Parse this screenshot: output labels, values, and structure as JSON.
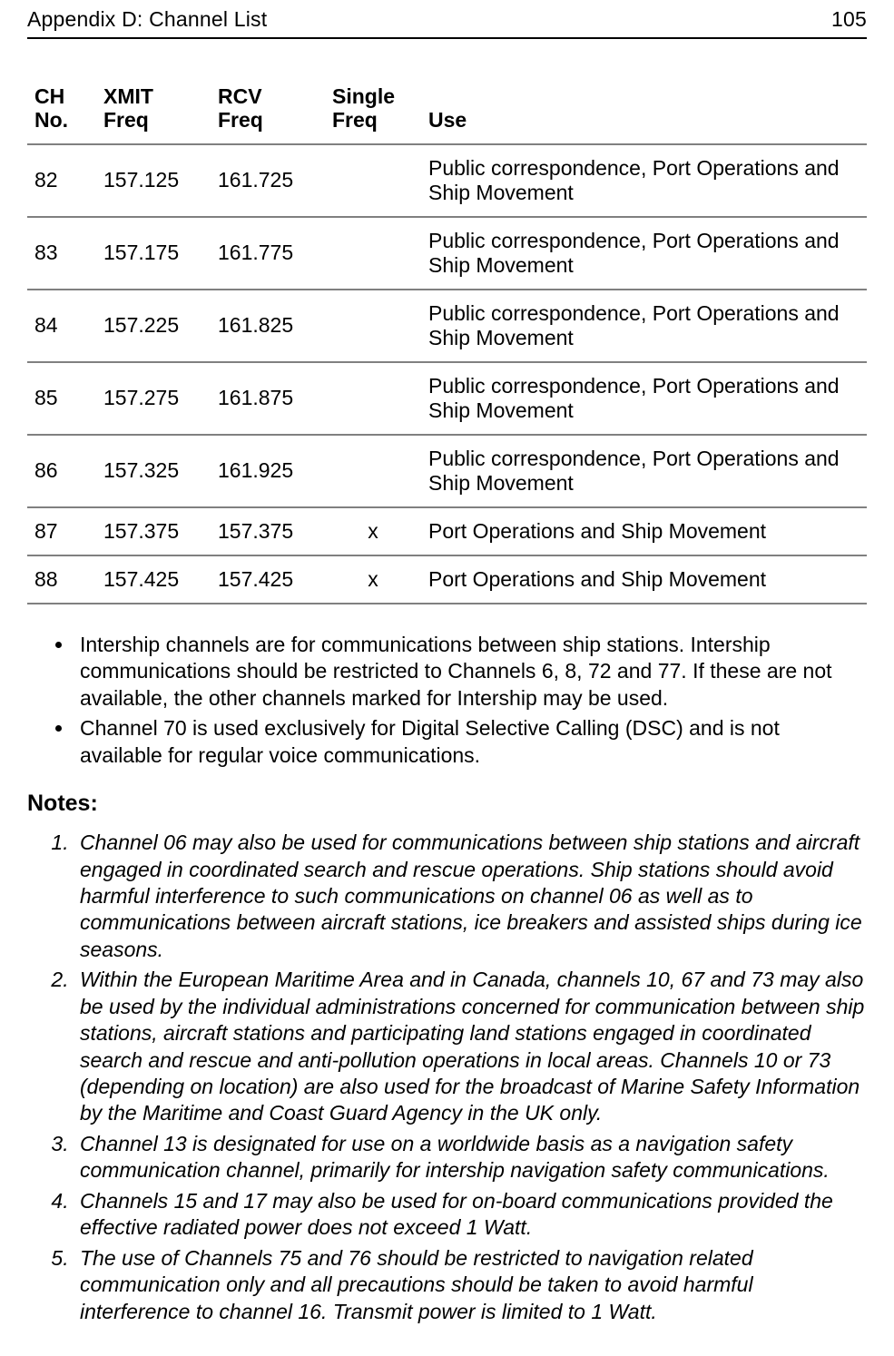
{
  "header": {
    "title": "Appendix D: Channel List",
    "page_number": "105"
  },
  "table": {
    "columns": {
      "ch": {
        "line1": "CH",
        "line2": "No."
      },
      "xmit": {
        "line1": "XMIT",
        "line2": "Freq"
      },
      "rcv": {
        "line1": "RCV",
        "line2": "Freq"
      },
      "single": {
        "line1": "Single",
        "line2": "Freq"
      },
      "use": {
        "line1": "Use",
        "line2": ""
      }
    },
    "rows": [
      {
        "ch": "82",
        "xmit": "157.125",
        "rcv": "161.725",
        "single": "",
        "use": "Public correspondence, Port Operations and Ship Movement"
      },
      {
        "ch": "83",
        "xmit": "157.175",
        "rcv": "161.775",
        "single": "",
        "use": "Public correspondence, Port Operations and Ship Movement"
      },
      {
        "ch": "84",
        "xmit": "157.225",
        "rcv": "161.825",
        "single": "",
        "use": "Public correspondence, Port Operations and Ship Movement"
      },
      {
        "ch": "85",
        "xmit": "157.275",
        "rcv": "161.875",
        "single": "",
        "use": "Public correspondence, Port Operations and Ship Movement"
      },
      {
        "ch": "86",
        "xmit": "157.325",
        "rcv": "161.925",
        "single": "",
        "use": "Public correspondence, Port Operations and Ship Movement"
      },
      {
        "ch": "87",
        "xmit": "157.375",
        "rcv": "157.375",
        "single": "x",
        "use": "Port Operations and Ship Movement"
      },
      {
        "ch": "88",
        "xmit": "157.425",
        "rcv": "157.425",
        "single": "x",
        "use": "Port Operations and Ship Movement"
      }
    ]
  },
  "bullets": [
    "Intership channels are for communications between ship stations. Intership communications should be restricted to Channels 6, 8, 72 and 77. If these are not available, the other channels marked for Intership may be used.",
    "Channel 70 is used exclusively for Digital Selective Calling (DSC) and is not available for regular voice communications."
  ],
  "notes_heading": "Notes:",
  "notes": [
    "Channel 06 may also be used for communications between ship stations and aircraft engaged in coordinated search and rescue operations. Ship stations should avoid harmful interference to such communications on channel 06 as well as to communications between aircraft stations, ice breakers and assisted ships during ice seasons.",
    "Within the European Maritime Area and in Canada, channels 10, 67 and 73 may also be used by the individual administrations concerned for communication between ship stations, aircraft stations and participating land stations engaged in coordinated search and rescue and anti-pollution operations in local areas. Channels 10 or 73 (depending on location) are also used for the broadcast of Marine Safety Information by the Maritime and Coast Guard Agency in the UK only.",
    "Channel 13 is designated for use on a worldwide basis as a navigation safety communication channel, primarily for intership navigation safety communications.",
    "Channels 15 and 17 may also be used for on-board communications provided the effective radiated power does not exceed 1 Watt.",
    "The use of Channels 75 and 76 should be restricted to navigation related communication only and all precautions should be taken to avoid harmful interference to channel 16. Transmit power is limited to 1 Watt."
  ]
}
